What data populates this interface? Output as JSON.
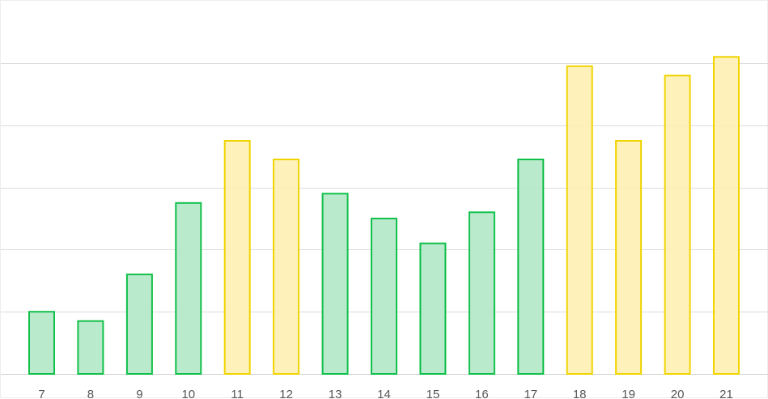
{
  "chart_data": {
    "type": "bar",
    "title": "",
    "xlabel": "",
    "ylabel": "",
    "categories": [
      "7",
      "8",
      "9",
      "10",
      "11",
      "12",
      "13",
      "14",
      "15",
      "16",
      "17",
      "18",
      "19",
      "20",
      "21"
    ],
    "values": [
      1.0,
      0.85,
      1.6,
      2.75,
      3.75,
      3.45,
      2.9,
      2.5,
      2.1,
      2.6,
      3.45,
      4.95,
      3.75,
      4.8,
      5.1
    ],
    "highlight": [
      false,
      false,
      false,
      false,
      true,
      true,
      false,
      false,
      false,
      false,
      false,
      true,
      true,
      true,
      true
    ],
    "ylim": [
      0,
      5.0
    ],
    "y_grid_step": 1,
    "grid": true,
    "legend": "none",
    "colors": {
      "normal_fill": "#b2e8c6",
      "normal_stroke": "#11c04a",
      "highlight_fill": "#fff0b3",
      "highlight_stroke": "#f0d400",
      "grid": "#dcdcdc",
      "baseline": "#d0d0d0",
      "tick_text": "#555555"
    }
  }
}
